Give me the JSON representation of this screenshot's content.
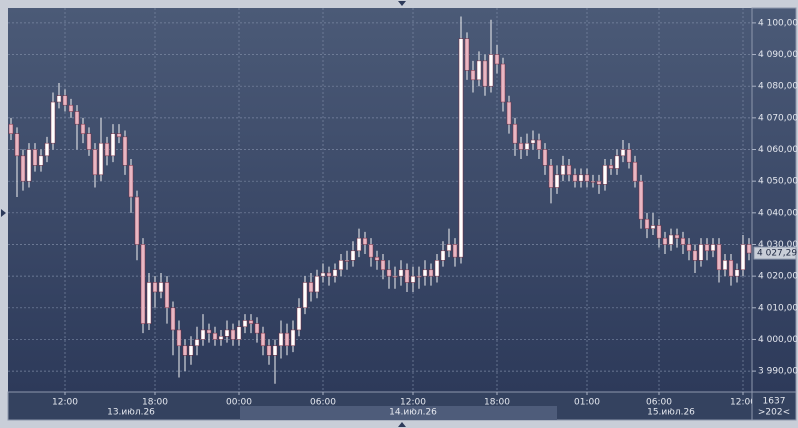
{
  "chart_data": {
    "type": "candlestick",
    "open": [
      4068,
      4065,
      4058,
      4050,
      4060,
      4055,
      4058,
      4062,
      4075,
      4077,
      4074,
      4072,
      4068,
      4065,
      4060,
      4052,
      4062,
      4058,
      4065,
      4064,
      4055,
      4045,
      4030,
      4005,
      4018,
      4015,
      4018,
      4010,
      4003,
      3998,
      3995,
      3998,
      4000,
      4003,
      4002,
      4000,
      4001,
      4003,
      4000,
      4004,
      4006,
      4005,
      4002,
      3998,
      3995,
      3998,
      4002,
      3998,
      4003,
      4010,
      4018,
      4015,
      4020,
      4021,
      4020,
      4022,
      4025,
      4025,
      4028,
      4032,
      4030,
      4026,
      4025,
      4022,
      4020,
      4020,
      4022,
      4018,
      4020,
      4020,
      4022,
      4020,
      4025,
      4028,
      4030,
      4026,
      4095,
      4085,
      4082,
      4088,
      4080,
      4090,
      4087,
      4075,
      4068,
      4062,
      4060,
      4062,
      4063,
      4060,
      4055,
      4048,
      4052,
      4055,
      4052,
      4050,
      4052,
      4050,
      4050,
      4049,
      4055,
      4054,
      4058,
      4060,
      4056,
      4050,
      4038,
      4035,
      4036,
      4032,
      4030,
      4033,
      4032,
      4030,
      4028,
      4025,
      4030,
      4028,
      4030,
      4022,
      4025,
      4020,
      4022,
      4030
    ],
    "high": [
      4070,
      4067,
      4060,
      4062,
      4062,
      4060,
      4064,
      4078,
      4081,
      4079,
      4076,
      4074,
      4070,
      4067,
      4062,
      4070,
      4064,
      4068,
      4068,
      4066,
      4057,
      4047,
      4032,
      4021,
      4020,
      4021,
      4020,
      4012,
      4006,
      4000,
      4001,
      4004,
      4008,
      4005,
      4004,
      4003,
      4006,
      4005,
      4006,
      4008,
      4008,
      4007,
      4004,
      4000,
      4000,
      4006,
      4005,
      4006,
      4013,
      4020,
      4021,
      4022,
      4024,
      4023,
      4024,
      4027,
      4028,
      4031,
      4035,
      4034,
      4032,
      4028,
      4027,
      4025,
      4023,
      4025,
      4024,
      4023,
      4023,
      4025,
      4024,
      4027,
      4031,
      4035,
      4032,
      4102,
      4097,
      4088,
      4091,
      4090,
      4101,
      4093,
      4089,
      4077,
      4070,
      4064,
      4065,
      4066,
      4065,
      4062,
      4057,
      4055,
      4058,
      4057,
      4054,
      4054,
      4054,
      4052,
      4052,
      4057,
      4057,
      4060,
      4063,
      4062,
      4058,
      4052,
      4040,
      4040,
      4038,
      4034,
      4035,
      4035,
      4034,
      4032,
      4030,
      4032,
      4032,
      4032,
      4032,
      4027,
      4027,
      4024,
      4033,
      4032
    ],
    "low": [
      4063,
      4045,
      4047,
      4048,
      4053,
      4053,
      4056,
      4060,
      4073,
      4072,
      4070,
      4060,
      4062,
      4058,
      4048,
      4050,
      4055,
      4056,
      4062,
      4052,
      4040,
      4025,
      4002,
      4003,
      4010,
      4013,
      4005,
      3995,
      3988,
      3990,
      3992,
      3995,
      3998,
      3999,
      3998,
      3998,
      3999,
      3998,
      3998,
      4002,
      4002,
      3999,
      3995,
      3992,
      3986,
      3994,
      3995,
      3996,
      4001,
      4008,
      4012,
      4013,
      4018,
      4017,
      4018,
      4020,
      4022,
      4023,
      4026,
      4027,
      4023,
      4022,
      4019,
      4016,
      4016,
      4017,
      4015,
      4015,
      4016,
      4017,
      4017,
      4018,
      4023,
      4026,
      4023,
      4024,
      4082,
      4078,
      4080,
      4077,
      4078,
      4084,
      4072,
      4065,
      4058,
      4057,
      4058,
      4060,
      4057,
      4052,
      4043,
      4046,
      4050,
      4050,
      4048,
      4048,
      4048,
      4048,
      4046,
      4047,
      4052,
      4052,
      4056,
      4054,
      4048,
      4035,
      4032,
      4033,
      4029,
      4027,
      4028,
      4029,
      4027,
      4025,
      4021,
      4023,
      4025,
      4026,
      4018,
      4020,
      4017,
      4018,
      4020,
      4025
    ],
    "close": [
      4065,
      4058,
      4050,
      4060,
      4055,
      4058,
      4062,
      4075,
      4077,
      4074,
      4072,
      4068,
      4065,
      4060,
      4052,
      4062,
      4058,
      4065,
      4064,
      4055,
      4045,
      4030,
      4005,
      4018,
      4015,
      4018,
      4010,
      4003,
      3998,
      3995,
      3998,
      4000,
      4003,
      4002,
      4000,
      4001,
      4003,
      4000,
      4004,
      4006,
      4005,
      4002,
      3998,
      3995,
      3998,
      4002,
      3998,
      4003,
      4010,
      4018,
      4015,
      4020,
      4021,
      4020,
      4022,
      4025,
      4025,
      4028,
      4032,
      4030,
      4026,
      4025,
      4022,
      4020,
      4020,
      4022,
      4018,
      4020,
      4020,
      4022,
      4020,
      4025,
      4028,
      4030,
      4026,
      4095,
      4085,
      4082,
      4088,
      4080,
      4090,
      4087,
      4075,
      4068,
      4062,
      4060,
      4062,
      4063,
      4060,
      4055,
      4048,
      4052,
      4055,
      4052,
      4050,
      4052,
      4050,
      4050,
      4049,
      4055,
      4054,
      4058,
      4060,
      4056,
      4050,
      4038,
      4035,
      4036,
      4032,
      4030,
      4033,
      4032,
      4030,
      4028,
      4025,
      4030,
      4028,
      4030,
      4022,
      4025,
      4020,
      4022,
      4030,
      4027.29
    ],
    "up_color": "#ffffff",
    "down_color": "#e9b7c3",
    "ylim": [
      3983.4,
      4104.7
    ],
    "yticks": [
      {
        "value": 3990,
        "label": "3 990,00"
      },
      {
        "value": 4000,
        "label": "4 000,00"
      },
      {
        "value": 4010,
        "label": "4 010,00"
      },
      {
        "value": 4020,
        "label": "4 020,00"
      },
      {
        "value": 4030,
        "label": "4 030,00"
      },
      {
        "value": 4040,
        "label": "4 040,00"
      },
      {
        "value": 4050,
        "label": "4 050,00"
      },
      {
        "value": 4060,
        "label": "4 060,00"
      },
      {
        "value": 4070,
        "label": "4 070,00"
      },
      {
        "value": 4080,
        "label": "4 080,00"
      },
      {
        "value": 4090,
        "label": "4 090,00"
      },
      {
        "value": 4100,
        "label": "4 100,00"
      }
    ],
    "xticks": [
      {
        "value": 9,
        "label": "12:00"
      },
      {
        "value": 24,
        "label": "18:00"
      },
      {
        "value": 38,
        "label": "00:00"
      },
      {
        "value": 52,
        "label": "06:00"
      },
      {
        "value": 67,
        "label": "12:00"
      },
      {
        "value": 81,
        "label": "18:00"
      },
      {
        "value": 96,
        "label": "01:00"
      },
      {
        "value": 108,
        "label": "06:00"
      },
      {
        "value": 122,
        "label": "12:00"
      }
    ],
    "xdates": [
      {
        "value": 20,
        "label": "13.июл.26"
      },
      {
        "value": 67,
        "label": "14.июл.26"
      },
      {
        "value": 110,
        "label": "15.июл.26"
      }
    ],
    "last_price": {
      "value": 4027.29,
      "label": "4 027,29"
    },
    "corner_labels": [
      "1637",
      ">202<"
    ],
    "grid": true
  }
}
